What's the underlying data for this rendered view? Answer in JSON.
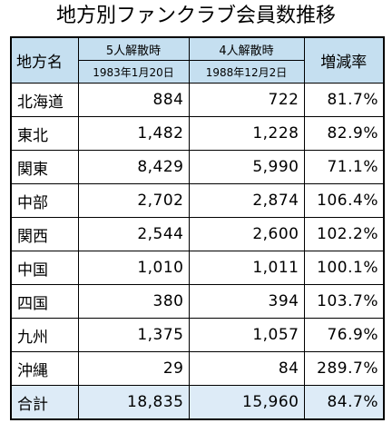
{
  "title": "地方別ファンクラブ会員数推移",
  "header": {
    "region": "地方名",
    "col1": "5人解散時",
    "col1_date": "1983年1月20日",
    "col2": "4人解散時",
    "col2_date": "1988年12月2日",
    "rate": "増減率"
  },
  "rows": [
    {
      "region": "北海道",
      "v1": "884",
      "v2": "722",
      "rate": "81.7%"
    },
    {
      "region": "東北",
      "v1": "1,482",
      "v2": "1,228",
      "rate": "82.9%"
    },
    {
      "region": "関東",
      "v1": "8,429",
      "v2": "5,990",
      "rate": "71.1%"
    },
    {
      "region": "中部",
      "v1": "2,702",
      "v2": "2,874",
      "rate": "106.4%"
    },
    {
      "region": "関西",
      "v1": "2,544",
      "v2": "2,600",
      "rate": "102.2%"
    },
    {
      "region": "中国",
      "v1": "1,010",
      "v2": "1,011",
      "rate": "100.1%"
    },
    {
      "region": "四国",
      "v1": "380",
      "v2": "394",
      "rate": "103.7%"
    },
    {
      "region": "九州",
      "v1": "1,375",
      "v2": "1,057",
      "rate": "76.9%"
    },
    {
      "region": "沖縄",
      "v1": "29",
      "v2": "84",
      "rate": "289.7%"
    }
  ],
  "total": {
    "region": "合計",
    "v1": "18,835",
    "v2": "15,960",
    "rate": "84.7%"
  },
  "colors": {
    "header_bg": "#c5dff0",
    "total_bg": "#ddebf7",
    "border": "#000000"
  }
}
